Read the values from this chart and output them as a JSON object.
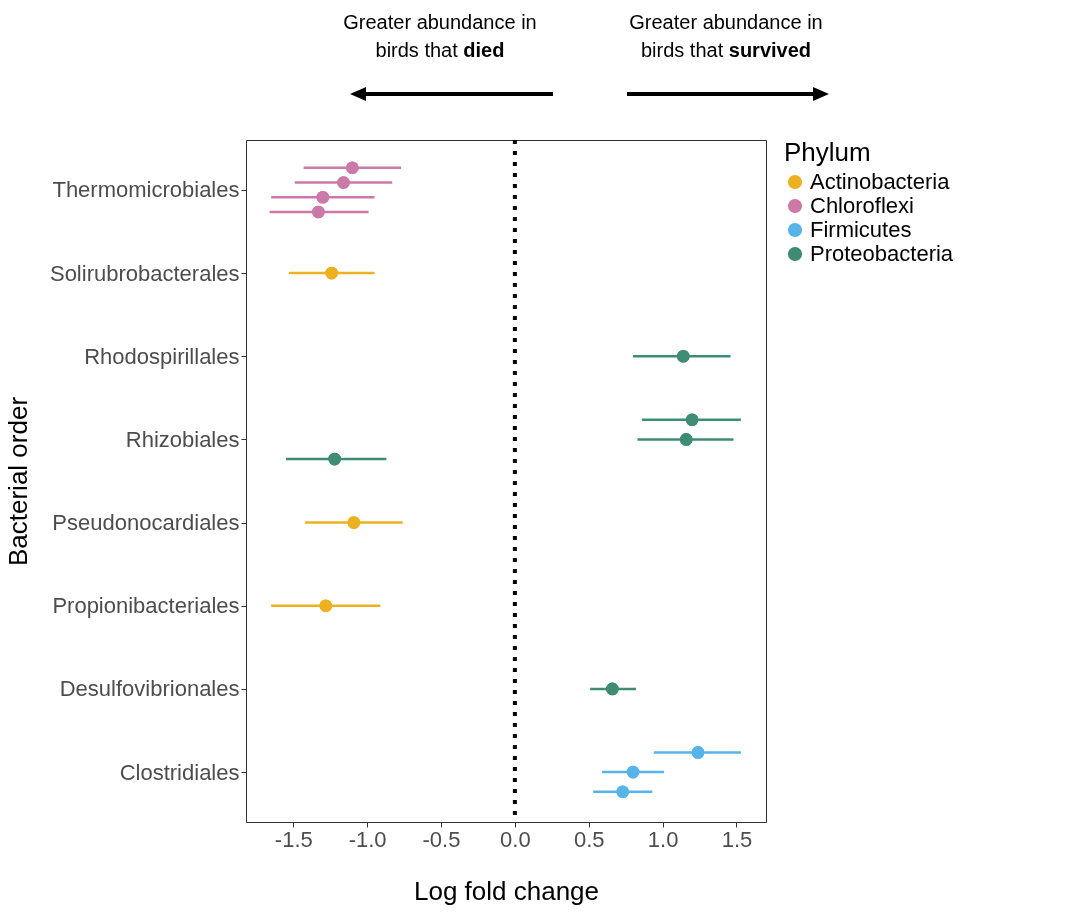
{
  "chart_data": {
    "type": "scatter",
    "orientation": "horizontal",
    "xlabel": "Log fold change",
    "ylabel": "Bacterial order",
    "legend_title": "Phylum",
    "legend": "right",
    "marker": "circle",
    "annotations": [
      "Greater abundance in birds that died",
      "Greater abundance in birds that survived"
    ],
    "categories": [
      "Thermomicrobiales",
      "Solirubrobacterales",
      "Rhodospirillales",
      "Rhizobiales",
      "Pseudonocardiales",
      "Propionibacteriales",
      "Desulfovibrionales",
      "Clostridiales"
    ],
    "xlim": [
      -1.82,
      1.7
    ],
    "xticks": [
      {
        "value": -1.5,
        "label": "-1.5"
      },
      {
        "value": -1,
        "label": "-1.0"
      },
      {
        "value": -0.5,
        "label": "-0.5"
      },
      {
        "value": 0,
        "label": "0.0"
      },
      {
        "value": 0.5,
        "label": "0.5"
      },
      {
        "value": 1,
        "label": "1.0"
      },
      {
        "value": 1.5,
        "label": "1.5"
      }
    ],
    "ref_lines": [
      {
        "axis": "x",
        "value": 0,
        "color": "#000000",
        "line_style": "dotted"
      }
    ],
    "series": [
      {
        "name": "Actinobacteria",
        "color": "#EDB120",
        "x": [
          "Solirubrobacterales",
          "Pseudonocardiales",
          "Propionibacteriales"
        ],
        "values": [
          -1.24,
          -1.09,
          -1.28
        ],
        "errors": [
          [
            -1.53,
            -0.95
          ],
          [
            -1.42,
            -0.76
          ],
          [
            -1.65,
            -0.91
          ]
        ]
      },
      {
        "name": "Chloroflexi",
        "color": "#CC79A7",
        "x": [
          "Thermomicrobiales",
          "Thermomicrobiales",
          "Thermomicrobiales",
          "Thermomicrobiales"
        ],
        "values": [
          -1.1,
          -1.16,
          -1.3,
          -1.33
        ],
        "errors": [
          [
            -1.43,
            -0.77
          ],
          [
            -1.49,
            -0.83
          ],
          [
            -1.65,
            -0.95
          ],
          [
            -1.66,
            -0.99
          ]
        ]
      },
      {
        "name": "Firmicutes",
        "color": "#56B4E9",
        "x": [
          "Clostridiales",
          "Clostridiales",
          "Clostridiales"
        ],
        "values": [
          1.24,
          0.8,
          0.73
        ],
        "errors": [
          [
            0.94,
            1.53
          ],
          [
            0.59,
            1.01
          ],
          [
            0.53,
            0.93
          ]
        ]
      },
      {
        "name": "Proteobacteria",
        "color": "#3E8C74",
        "x": [
          "Rhodospirillales",
          "Rhizobiales",
          "Rhizobiales",
          "Rhizobiales",
          "Desulfovibrionales"
        ],
        "values": [
          1.14,
          1.2,
          1.16,
          -1.22,
          0.66
        ],
        "errors": [
          [
            0.8,
            1.46
          ],
          [
            0.86,
            1.53
          ],
          [
            0.83,
            1.48
          ],
          [
            -1.55,
            -0.87
          ],
          [
            0.51,
            0.82
          ]
        ]
      }
    ]
  }
}
